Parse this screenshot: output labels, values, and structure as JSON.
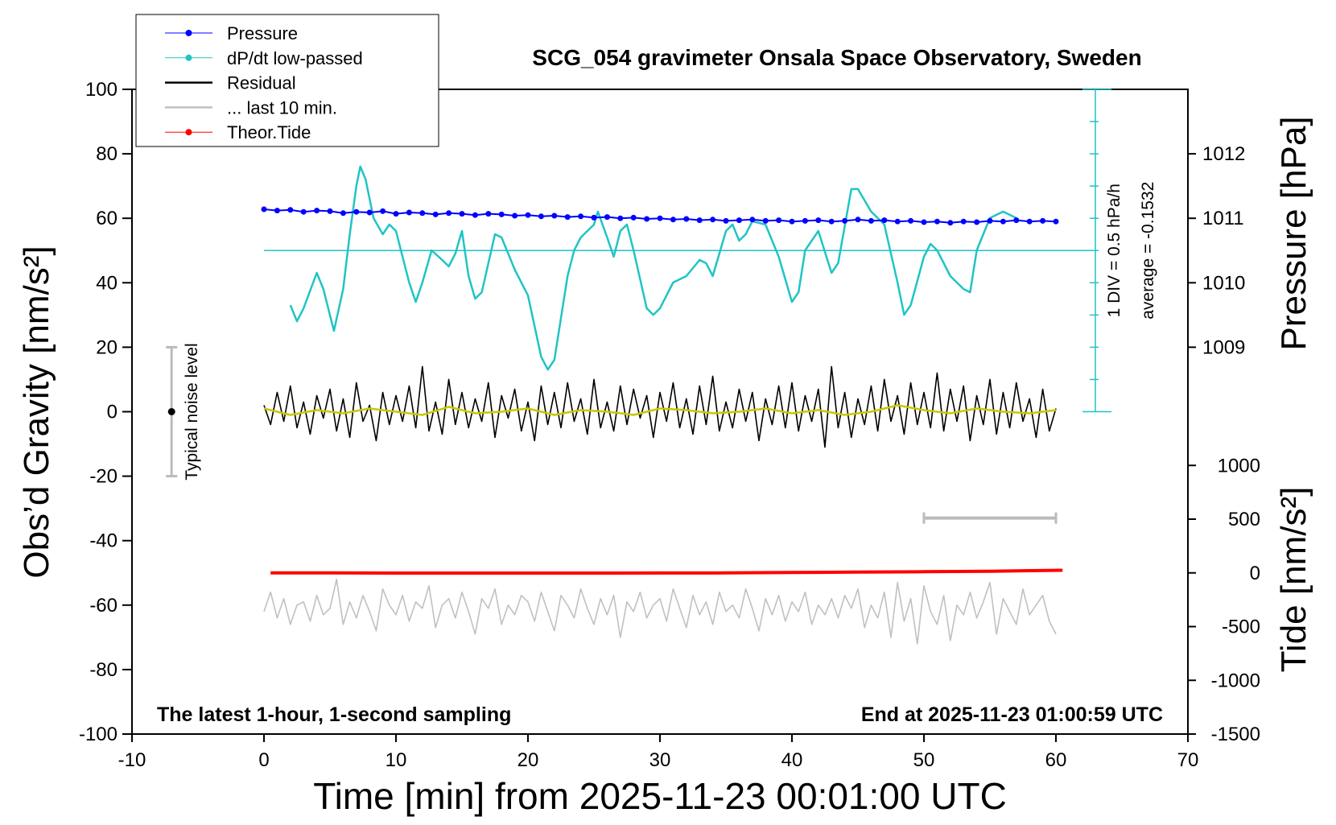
{
  "chart_data": {
    "type": "line",
    "title": "SCG_054 gravimeter Onsala Space Observatory, Sweden",
    "xlabel": "Time [min] from 2025-11-23 00:01:00 UTC",
    "ylabel": "Obs’d Gravity [nm/s²]",
    "y2label": "Pressure [hPa]",
    "y3label": "Tide [nm/s²]",
    "annotations": [
      "The latest 1-hour, 1-second sampling",
      "End at 2025-11-23 01:00:59 UTC"
    ],
    "dpdt_div": {
      "value": 0.5,
      "label": "1 DIV = 0.5 hPa/h"
    },
    "dpdt_average": {
      "value": -0.1532,
      "label": "average = -0.1532"
    },
    "noise_level": {
      "label": "Typical noise level",
      "x": -7,
      "range": [
        -20,
        20
      ],
      "center": 0
    },
    "last10_marker": {
      "x": [
        50,
        60
      ],
      "y": -33
    },
    "xlim": [
      -10,
      70
    ],
    "xticks": [
      -10,
      0,
      10,
      20,
      30,
      40,
      50,
      60,
      70
    ],
    "ylim": [
      -100,
      100
    ],
    "yticks": [
      -100,
      -80,
      -60,
      -40,
      -20,
      0,
      20,
      40,
      60,
      80,
      100
    ],
    "y2lim": [
      1003,
      1013
    ],
    "y2ticks": [
      1009,
      1010,
      1011,
      1012
    ],
    "y3lim": [
      -1500,
      4500
    ],
    "y3ticks": [
      -1500,
      -1000,
      -500,
      0,
      500,
      1000
    ],
    "x": [
      0,
      0.5,
      1,
      1.5,
      2,
      2.5,
      3,
      3.5,
      4,
      4.5,
      5,
      5.5,
      6,
      6.5,
      7,
      7.5,
      8,
      8.5,
      9,
      9.5,
      10,
      10.5,
      11,
      11.5,
      12,
      12.5,
      13,
      13.5,
      14,
      14.5,
      15,
      15.5,
      16,
      16.5,
      17,
      17.5,
      18,
      18.5,
      19,
      19.5,
      20,
      20.5,
      21,
      21.5,
      22,
      22.5,
      23,
      23.5,
      24,
      24.5,
      25,
      25.5,
      26,
      26.5,
      27,
      27.5,
      28,
      28.5,
      29,
      29.5,
      30,
      30.5,
      31,
      31.5,
      32,
      32.5,
      33,
      33.5,
      34,
      34.5,
      35,
      35.5,
      36,
      36.5,
      37,
      37.5,
      38,
      38.5,
      39,
      39.5,
      40,
      40.5,
      41,
      41.5,
      42,
      42.5,
      43,
      43.5,
      44,
      44.5,
      45,
      45.5,
      46,
      46.5,
      47,
      47.5,
      48,
      48.5,
      49,
      49.5,
      50,
      50.5,
      51,
      51.5,
      52,
      52.5,
      53,
      53.5,
      54,
      54.5,
      55,
      55.5,
      56,
      56.5,
      57,
      57.5,
      58,
      58.5,
      59,
      59.5,
      60
    ],
    "series": [
      {
        "name": "Pressure",
        "color": "#0000ff",
        "marker": true,
        "axis": "y2",
        "x": [
          0,
          1,
          2,
          3,
          4,
          5,
          6,
          7,
          8,
          9,
          10,
          11,
          12,
          13,
          14,
          15,
          16,
          17,
          18,
          19,
          20,
          21,
          22,
          23,
          24,
          25,
          26,
          27,
          28,
          29,
          30,
          31,
          32,
          33,
          34,
          35,
          36,
          37,
          38,
          39,
          40,
          41,
          42,
          43,
          44,
          45,
          46,
          47,
          48,
          49,
          50,
          51,
          52,
          53,
          54,
          55,
          56,
          57,
          58,
          59,
          60
        ],
        "values": [
          1011.14,
          1011.12,
          1011.13,
          1011.1,
          1011.12,
          1011.11,
          1011.08,
          1011.1,
          1011.09,
          1011.11,
          1011.07,
          1011.09,
          1011.08,
          1011.06,
          1011.08,
          1011.07,
          1011.05,
          1011.07,
          1011.06,
          1011.04,
          1011.05,
          1011.03,
          1011.04,
          1011.02,
          1011.03,
          1011.01,
          1011.02,
          1011.0,
          1011.01,
          1010.99,
          1011.0,
          1010.98,
          1010.99,
          1010.97,
          1010.98,
          1010.96,
          1010.97,
          1010.98,
          1010.96,
          1010.97,
          1010.95,
          1010.96,
          1010.97,
          1010.95,
          1010.96,
          1010.98,
          1010.96,
          1010.97,
          1010.95,
          1010.96,
          1010.94,
          1010.95,
          1010.93,
          1010.95,
          1010.94,
          1010.96,
          1010.95,
          1010.97,
          1010.95,
          1010.96,
          1010.95
        ]
      },
      {
        "name": "dP/dt low-passed",
        "color": "#20c4c4",
        "marker": true,
        "axis": "dpdt",
        "x": [
          2,
          2.5,
          3,
          4,
          4.5,
          5.3,
          6,
          6.5,
          7,
          7.3,
          7.7,
          8.3,
          9,
          9.5,
          10,
          11,
          11.5,
          12,
          12.7,
          13.5,
          14,
          14.5,
          15,
          15.5,
          16,
          16.5,
          17.5,
          18,
          19,
          20,
          21,
          21.5,
          22,
          23,
          23.5,
          24,
          25,
          25.3,
          26,
          26.5,
          27,
          27.5,
          28,
          29,
          29.5,
          30,
          31,
          32,
          33,
          33.5,
          34,
          35,
          35.5,
          36,
          36.5,
          37,
          38,
          39,
          40,
          40.5,
          41,
          42,
          43,
          43.5,
          44.5,
          45,
          46,
          47,
          48,
          48.5,
          49,
          50,
          50.5,
          51,
          52,
          53,
          53.5,
          54,
          55,
          56,
          57
        ],
        "values": [
          -1.0,
          -1.25,
          -1.05,
          -0.5,
          -0.75,
          -1.4,
          -0.75,
          0.1,
          0.85,
          1.15,
          0.95,
          0.35,
          0.1,
          0.25,
          0.15,
          -0.65,
          -0.95,
          -0.65,
          -0.15,
          -0.3,
          -0.4,
          -0.2,
          0.15,
          -0.55,
          -0.9,
          -0.8,
          0.1,
          0.05,
          -0.45,
          -0.85,
          -1.8,
          -2.0,
          -1.85,
          -0.55,
          -0.15,
          0.05,
          0.25,
          0.45,
          0.05,
          -0.25,
          0.15,
          0.25,
          -0.15,
          -1.05,
          -1.15,
          -1.05,
          -0.65,
          -0.55,
          -0.3,
          -0.35,
          -0.55,
          0.15,
          0.25,
          0.0,
          0.1,
          0.3,
          0.25,
          -0.25,
          -0.95,
          -0.8,
          -0.15,
          0.15,
          -0.5,
          -0.35,
          0.8,
          0.8,
          0.45,
          0.25,
          -0.65,
          -1.15,
          -1.0,
          -0.25,
          -0.05,
          -0.15,
          -0.55,
          -0.75,
          -0.8,
          -0.15,
          0.35,
          0.45,
          0.35
        ]
      },
      {
        "name": "Residual",
        "color": "#000000",
        "marker": false,
        "axis": "y",
        "values": [
          2,
          -4,
          6,
          -3,
          8,
          -5,
          3,
          -7,
          5,
          -2,
          7,
          -6,
          4,
          -8,
          9,
          -3,
          2,
          -9,
          6,
          -4,
          5,
          -3,
          8,
          -5,
          14,
          -6,
          3,
          -7,
          10,
          -4,
          6,
          -5,
          4,
          -3,
          9,
          -8,
          5,
          -2,
          7,
          -6,
          3,
          -9,
          8,
          -4,
          6,
          -5,
          9,
          -3,
          4,
          -7,
          10,
          -5,
          3,
          -6,
          8,
          -4,
          7,
          -2,
          5,
          -8,
          6,
          -3,
          9,
          -5,
          4,
          -7,
          8,
          -4,
          11,
          -6,
          3,
          -5,
          7,
          -3,
          6,
          -9,
          4,
          -4,
          8,
          -5,
          9,
          -6,
          5,
          -3,
          7,
          -11,
          14,
          -5,
          6,
          -8,
          4,
          -4,
          8,
          -6,
          10,
          -3,
          5,
          -7,
          9,
          -4,
          6,
          -5,
          12,
          -6,
          7,
          -3,
          8,
          -9,
          5,
          -4,
          10,
          -7,
          6,
          -5,
          9,
          -3,
          4,
          -8,
          7,
          -6,
          1
        ]
      },
      {
        "name": "... last 10 min.",
        "color": "#c0c0c0",
        "marker": false,
        "axis": "y",
        "values": [
          -62,
          -56,
          -64,
          -58,
          -66,
          -60,
          -59,
          -65,
          -57,
          -63,
          -61,
          -52,
          -66,
          -59,
          -64,
          -57,
          -62,
          -68,
          -55,
          -60,
          -63,
          -57,
          -65,
          -59,
          -61,
          -54,
          -67,
          -60,
          -58,
          -64,
          -56,
          -62,
          -69,
          -58,
          -61,
          -55,
          -66,
          -60,
          -63,
          -57,
          -59,
          -65,
          -56,
          -62,
          -68,
          -57,
          -60,
          -64,
          -55,
          -61,
          -66,
          -58,
          -63,
          -57,
          -70,
          -59,
          -62,
          -56,
          -64,
          -60,
          -58,
          -65,
          -55,
          -61,
          -67,
          -57,
          -63,
          -59,
          -66,
          -56,
          -62,
          -60,
          -64,
          -55,
          -61,
          -68,
          -58,
          -63,
          -57,
          -65,
          -59,
          -62,
          -56,
          -66,
          -60,
          -63,
          -58,
          -64,
          -57,
          -61,
          -55,
          -67,
          -60,
          -64,
          -56,
          -70,
          -53,
          -65,
          -58,
          -72,
          -54,
          -62,
          -66,
          -57,
          -71,
          -60,
          -63,
          -56,
          -64,
          -59,
          -53,
          -69,
          -58,
          -62,
          -66,
          -55,
          -63,
          -60,
          -57,
          -65,
          -69
        ]
      },
      {
        "name": "Theor.Tide",
        "color": "#ff0000",
        "marker": true,
        "axis": "y3",
        "x": [
          0.5,
          5,
          10,
          15,
          20,
          25,
          30,
          35,
          40,
          45,
          50,
          55,
          60.5
        ],
        "values": [
          0,
          0,
          -2,
          -2,
          -2,
          -2,
          -1,
          0,
          3,
          7,
          11,
          15,
          24
        ]
      }
    ],
    "smoothed_residual": {
      "color": "#c8c800",
      "x": [
        0,
        2,
        4,
        6,
        8,
        10,
        12,
        14,
        16,
        18,
        20,
        22,
        24,
        26,
        28,
        30,
        32,
        34,
        36,
        38,
        40,
        42,
        44,
        46,
        48,
        50,
        52,
        54,
        56,
        58,
        60
      ],
      "values": [
        1,
        -1,
        0.5,
        -0.5,
        1,
        0,
        -1,
        1.5,
        -0.5,
        0,
        1,
        -1,
        0.5,
        0,
        -1,
        1,
        0.5,
        -0.5,
        0,
        1,
        -0.5,
        0.5,
        -1,
        0,
        2,
        0.5,
        -0.5,
        1,
        0,
        -0.5,
        0.5
      ]
    }
  }
}
